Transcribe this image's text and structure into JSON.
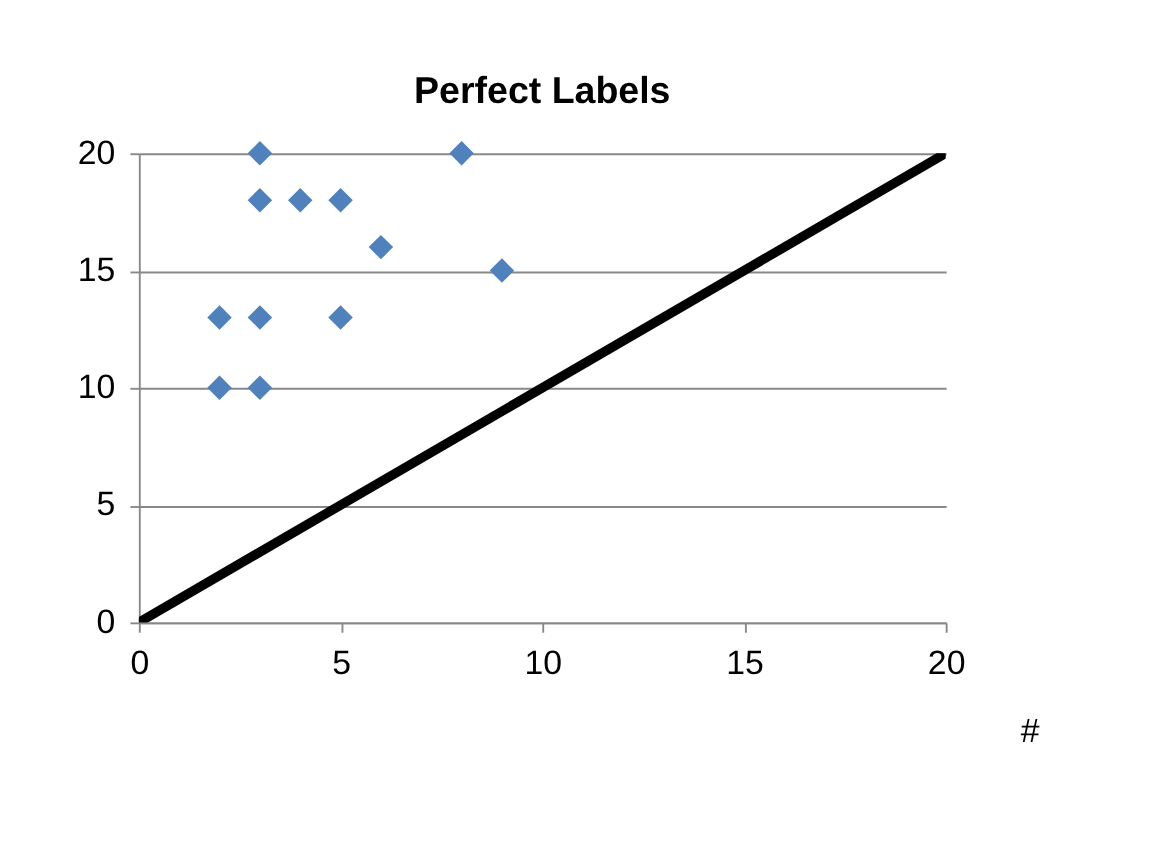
{
  "chart_data": {
    "type": "scatter",
    "title": "Perfect Labels",
    "xlim": [
      0,
      20
    ],
    "xticks": [
      0,
      5,
      10,
      15,
      20
    ],
    "ylim": [
      0,
      20
    ],
    "yticks": [
      0,
      5,
      10,
      15,
      20
    ],
    "grid": "y",
    "marker": "diamond",
    "series": [
      {
        "color": "#4f81bd",
        "x": [
          2,
          2,
          3,
          3,
          3,
          3,
          4,
          5,
          5,
          6,
          8,
          9
        ],
        "values": [
          10,
          13,
          10,
          13,
          18,
          20,
          18,
          18,
          13,
          16,
          20,
          15
        ]
      },
      {
        "type": "line",
        "color": "#000000",
        "marker": "none",
        "line_style": "solid",
        "x": [
          0,
          20
        ],
        "values": [
          0,
          20
        ]
      }
    ],
    "annotations": [
      "#"
    ]
  }
}
